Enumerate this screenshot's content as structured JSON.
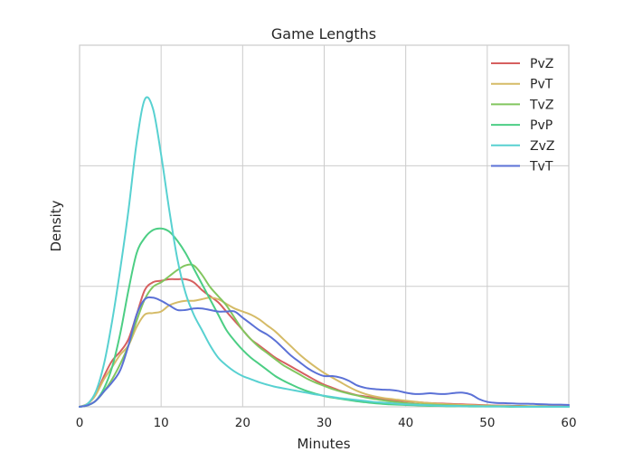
{
  "chart_data": {
    "type": "line",
    "title": "Game Lengths",
    "xlabel": "Minutes",
    "ylabel": "Density",
    "xlim": [
      0,
      60
    ],
    "ylim": [
      0,
      1
    ],
    "xticks": [
      "0",
      "10",
      "20",
      "30",
      "40",
      "50",
      "60"
    ],
    "grid": true,
    "legend_position": "top-right",
    "x": [
      0,
      1,
      2,
      3,
      4,
      5,
      6,
      7,
      8,
      9,
      10,
      11,
      12,
      13,
      14,
      15,
      16,
      17,
      18,
      19,
      20,
      21,
      22,
      23,
      24,
      25,
      26,
      27,
      28,
      29,
      30,
      31,
      32,
      33,
      34,
      35,
      36,
      37,
      38,
      39,
      40,
      41,
      42,
      43,
      44,
      45,
      46,
      47,
      48,
      49,
      50,
      51,
      52,
      53,
      54,
      55,
      56,
      57,
      58,
      59,
      60
    ],
    "series": [
      {
        "name": "PvZ",
        "color": "#d65f5f",
        "values": [
          0,
          0.01,
          0.04,
          0.1,
          0.15,
          0.18,
          0.22,
          0.3,
          0.38,
          0.405,
          0.41,
          0.415,
          0.415,
          0.415,
          0.405,
          0.38,
          0.36,
          0.34,
          0.31,
          0.28,
          0.25,
          0.22,
          0.2,
          0.18,
          0.16,
          0.145,
          0.13,
          0.115,
          0.1,
          0.085,
          0.072,
          0.062,
          0.052,
          0.045,
          0.038,
          0.034,
          0.03,
          0.026,
          0.022,
          0.02,
          0.018,
          0.016,
          0.014,
          0.012,
          0.011,
          0.01,
          0.009,
          0.008,
          0.007,
          0.006,
          0.005,
          0.004,
          0.004,
          0.003,
          0.003,
          0.002,
          0.002,
          0.002,
          0.001,
          0.001,
          0.001
        ]
      },
      {
        "name": "PvT",
        "color": "#d5bb67",
        "values": [
          0,
          0.01,
          0.04,
          0.09,
          0.13,
          0.17,
          0.2,
          0.26,
          0.3,
          0.305,
          0.31,
          0.33,
          0.34,
          0.345,
          0.345,
          0.35,
          0.355,
          0.35,
          0.335,
          0.32,
          0.31,
          0.3,
          0.285,
          0.265,
          0.245,
          0.22,
          0.195,
          0.17,
          0.148,
          0.128,
          0.11,
          0.095,
          0.08,
          0.065,
          0.052,
          0.042,
          0.035,
          0.03,
          0.026,
          0.023,
          0.02,
          0.017,
          0.014,
          0.012,
          0.01,
          0.008,
          0.007,
          0.006,
          0.005,
          0.004,
          0.004,
          0.003,
          0.003,
          0.002,
          0.002,
          0.002,
          0.001,
          0.001,
          0.001,
          0.001,
          0.001
        ]
      },
      {
        "name": "TvZ",
        "color": "#82c65f",
        "values": [
          0,
          0.005,
          0.02,
          0.05,
          0.09,
          0.14,
          0.2,
          0.28,
          0.35,
          0.39,
          0.405,
          0.425,
          0.445,
          0.46,
          0.46,
          0.43,
          0.39,
          0.36,
          0.33,
          0.29,
          0.25,
          0.22,
          0.195,
          0.175,
          0.155,
          0.135,
          0.12,
          0.105,
          0.09,
          0.078,
          0.068,
          0.058,
          0.05,
          0.043,
          0.037,
          0.031,
          0.026,
          0.022,
          0.018,
          0.015,
          0.012,
          0.01,
          0.008,
          0.007,
          0.006,
          0.005,
          0.004,
          0.003,
          0.003,
          0.002,
          0.002,
          0.002,
          0.001,
          0.001,
          0.001,
          0.001,
          0.001,
          0.001,
          0,
          0,
          0
        ]
      },
      {
        "name": "PvP",
        "color": "#4cce84",
        "values": [
          0,
          0.005,
          0.02,
          0.06,
          0.13,
          0.24,
          0.38,
          0.5,
          0.55,
          0.575,
          0.58,
          0.57,
          0.54,
          0.5,
          0.45,
          0.4,
          0.35,
          0.3,
          0.25,
          0.215,
          0.185,
          0.16,
          0.14,
          0.12,
          0.1,
          0.085,
          0.072,
          0.06,
          0.05,
          0.042,
          0.035,
          0.03,
          0.026,
          0.022,
          0.018,
          0.015,
          0.012,
          0.01,
          0.008,
          0.007,
          0.006,
          0.005,
          0.004,
          0.003,
          0.003,
          0.002,
          0.002,
          0.002,
          0.001,
          0.001,
          0.001,
          0.001,
          0.001,
          0,
          0,
          0,
          0,
          0,
          0,
          0,
          0
        ]
      },
      {
        "name": "ZvZ",
        "color": "#58d1d1",
        "values": [
          0,
          0.01,
          0.05,
          0.14,
          0.28,
          0.45,
          0.64,
          0.86,
          1.0,
          0.97,
          0.82,
          0.64,
          0.48,
          0.37,
          0.3,
          0.25,
          0.2,
          0.16,
          0.135,
          0.115,
          0.1,
          0.09,
          0.08,
          0.072,
          0.065,
          0.06,
          0.055,
          0.05,
          0.045,
          0.04,
          0.036,
          0.032,
          0.028,
          0.025,
          0.022,
          0.019,
          0.016,
          0.014,
          0.012,
          0.01,
          0.008,
          0.007,
          0.006,
          0.005,
          0.004,
          0.003,
          0.003,
          0.002,
          0.002,
          0.002,
          0.001,
          0.001,
          0.001,
          0.001,
          0,
          0,
          0,
          0,
          0,
          0,
          0
        ]
      },
      {
        "name": "TvT",
        "color": "#5b71d6",
        "values": [
          0,
          0.005,
          0.02,
          0.05,
          0.08,
          0.12,
          0.2,
          0.3,
          0.35,
          0.355,
          0.345,
          0.33,
          0.315,
          0.315,
          0.32,
          0.32,
          0.315,
          0.31,
          0.31,
          0.31,
          0.29,
          0.27,
          0.25,
          0.235,
          0.215,
          0.19,
          0.165,
          0.145,
          0.125,
          0.11,
          0.1,
          0.1,
          0.095,
          0.085,
          0.07,
          0.062,
          0.058,
          0.056,
          0.055,
          0.052,
          0.046,
          0.042,
          0.042,
          0.044,
          0.042,
          0.042,
          0.045,
          0.046,
          0.04,
          0.025,
          0.016,
          0.013,
          0.012,
          0.011,
          0.01,
          0.01,
          0.009,
          0.008,
          0.007,
          0.007,
          0.006
        ]
      }
    ]
  }
}
